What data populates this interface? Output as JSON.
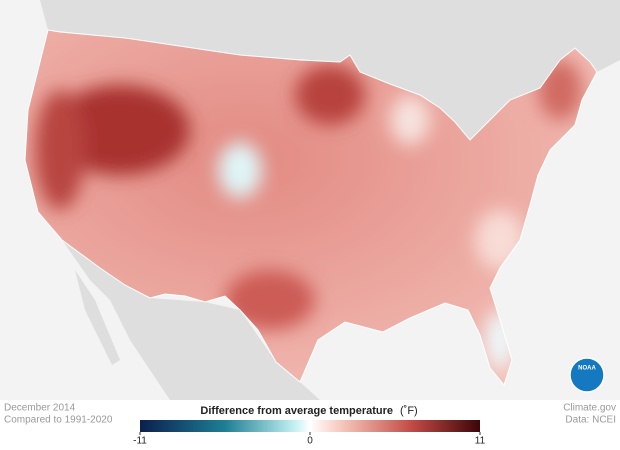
{
  "map": {
    "date": "December 2014",
    "baseline": "Compared to 1991-2020",
    "legend_title": "Difference from average temperature",
    "legend_unit": "(˚F)",
    "colorbar": {
      "lim": [
        -11,
        11
      ],
      "ticks": [
        -11,
        0,
        11
      ]
    },
    "credit": "Climate.gov",
    "source": "Data: NCEI",
    "logo": "NOAA"
  }
}
